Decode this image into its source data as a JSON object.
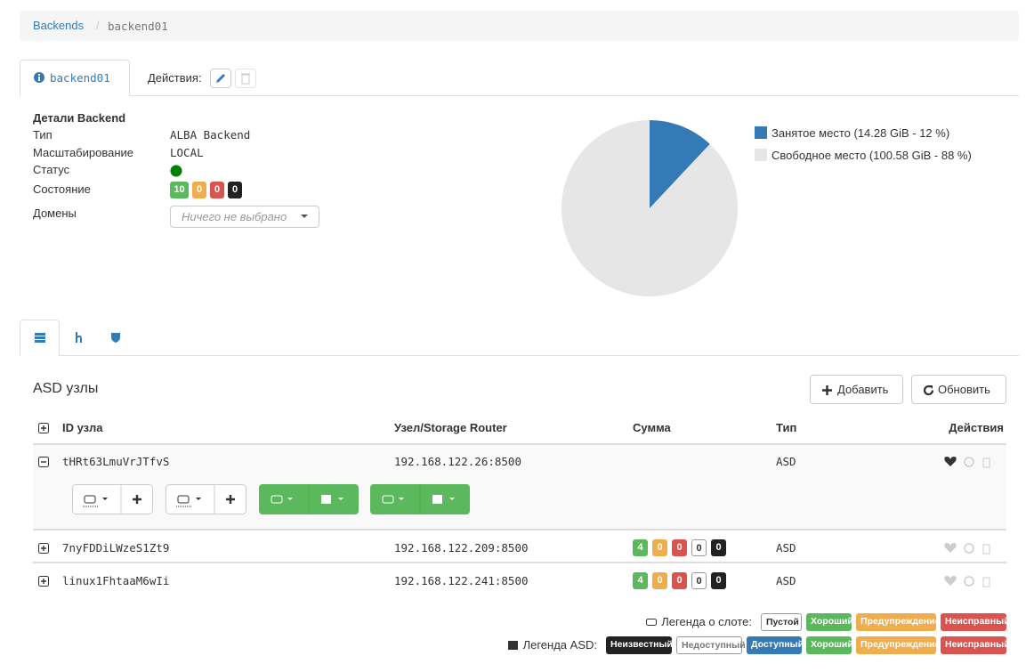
{
  "breadcrumb": {
    "items": [
      "Backends",
      "backend01"
    ],
    "separator": "/"
  },
  "tab": {
    "label": "backend01",
    "actions_label": "Действия:"
  },
  "details": {
    "title": "Детали Backend",
    "rows": [
      {
        "label": "Тип",
        "value": "ALBA Backend"
      },
      {
        "label": "Масштабирование",
        "value": "LOCAL"
      },
      {
        "label": "Статус"
      },
      {
        "label": "Состояние"
      },
      {
        "label": "Домены"
      }
    ],
    "state_badges": [
      "10",
      "0",
      "0",
      "0"
    ],
    "domains_placeholder": "Ничего не выбрано"
  },
  "chart": {
    "type": "pie",
    "slices": [
      {
        "label": "Занятое место (14.28 GiB - 12 %)",
        "value": 12,
        "color": "#337ab7"
      },
      {
        "label": "Свободное место (100.58 GiB - 88 %)",
        "value": 88,
        "color": "#e6e6e6"
      }
    ]
  },
  "asd": {
    "title": "ASD узлы",
    "add": "Добавить",
    "refresh": "Обновить",
    "headers": [
      "ID узла",
      "Узел/Storage Router",
      "Сумма",
      "Тип",
      "Действия"
    ],
    "rows": [
      {
        "id": "tHRt63LmuVrJTfvS",
        "node": "192.168.122.26:8500",
        "sum": [],
        "type": "ASD"
      },
      {
        "id": "7nyFDDiLWzeS1Zt9",
        "node": "192.168.122.209:8500",
        "sum": [
          "4",
          "0",
          "0",
          "0",
          "0"
        ],
        "type": "ASD"
      },
      {
        "id": "linux1FhtaaM6wIi",
        "node": "192.168.122.241:8500",
        "sum": [
          "4",
          "0",
          "0",
          "0",
          "0"
        ],
        "type": "ASD"
      }
    ]
  },
  "legends": {
    "slot": {
      "label": "Легенда о слоте:",
      "items": [
        "Пустой",
        "Хороший",
        "Предупреждение",
        "Неисправный"
      ]
    },
    "asd": {
      "label": "Легенда ASD:",
      "items": [
        "Неизвестный",
        "Недоступный",
        "Доступный",
        "Хороший",
        "Предупреждение",
        "Неисправный"
      ]
    }
  }
}
